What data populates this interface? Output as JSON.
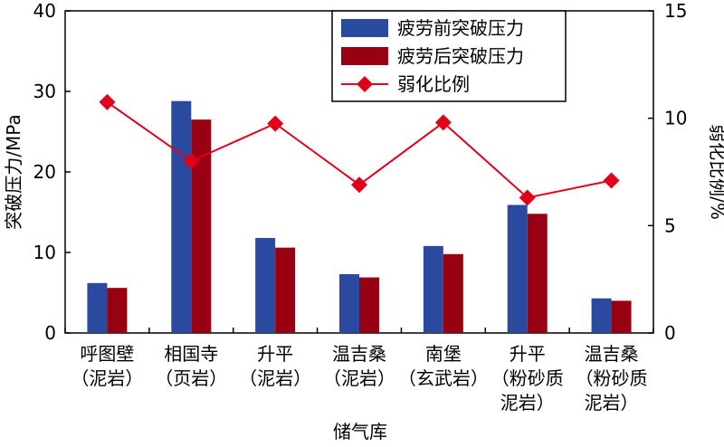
{
  "chart_data": {
    "type": "bar+line",
    "categories": [
      [
        "呼图壁",
        "（泥岩）"
      ],
      [
        "相国寺",
        "（页岩）"
      ],
      [
        "升平",
        "（泥岩）"
      ],
      [
        "温吉桑",
        "（泥岩）"
      ],
      [
        "南堡",
        "（玄武岩）"
      ],
      [
        "升平",
        "（粉砂质",
        "泥岩）"
      ],
      [
        "温吉桑",
        "（粉砂质",
        "泥岩）"
      ]
    ],
    "series": [
      {
        "name": "疲劳前突破压力",
        "type": "bar",
        "axis": "left",
        "color": "#2a4aa0",
        "values": [
          6.2,
          28.8,
          11.8,
          7.3,
          10.8,
          15.9,
          4.3
        ]
      },
      {
        "name": "疲劳后突破压力",
        "type": "bar",
        "axis": "left",
        "color": "#990012",
        "values": [
          5.6,
          26.5,
          10.6,
          6.9,
          9.8,
          14.8,
          4.0
        ]
      },
      {
        "name": "弱化比例",
        "type": "line",
        "axis": "right",
        "color": "#e0001a",
        "marker": "diamond",
        "values": [
          10.75,
          8.0,
          9.75,
          6.9,
          9.8,
          6.3,
          7.1
        ]
      }
    ],
    "xlabel": "储气库",
    "ylabel": "突破压力/MPa",
    "y2label": "弱化比例/%",
    "ylim": [
      0,
      40
    ],
    "yticks": [
      "0",
      "10",
      "20",
      "30",
      "40"
    ],
    "y2lim": [
      0,
      15
    ],
    "y2ticks": [
      "0",
      "5",
      "10",
      "15"
    ],
    "legend_position": "top-center",
    "grid": false
  }
}
